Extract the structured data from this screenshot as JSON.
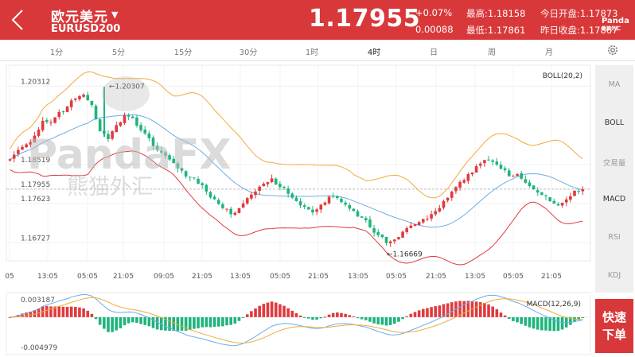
{
  "header": {
    "name": "欧元美元",
    "name_arrow": "▼",
    "code": "EURUSD200",
    "price": "1.17955",
    "change_pct": "+0.07%",
    "change_abs": "0.00088",
    "high_label": "最高:",
    "high_value": "1.18158",
    "low_label": "最低:",
    "low_value": "1.17861",
    "open_label": "今日开盘:",
    "open_value": "1.17873",
    "prev_close_label": "昨日收盘:",
    "prev_close_value": "1.17867",
    "logo_top": "Panda",
    "logo_bottom": "熊猫外汇"
  },
  "timeframes": [
    {
      "label": "1分",
      "active": false
    },
    {
      "label": "5分",
      "active": false
    },
    {
      "label": "15分",
      "active": false
    },
    {
      "label": "30分",
      "active": false
    },
    {
      "label": "1时",
      "active": false
    },
    {
      "label": "4时",
      "active": true
    },
    {
      "label": "日",
      "active": false
    },
    {
      "label": "周",
      "active": false
    },
    {
      "label": "月",
      "active": false
    }
  ],
  "side_indicators": [
    {
      "label": "MA",
      "active": false
    },
    {
      "label": "BOLL",
      "active": true
    },
    {
      "label": "交易量",
      "active": false
    },
    {
      "label": "MACD",
      "active": true
    },
    {
      "label": "RSI",
      "active": false
    },
    {
      "label": "KDJ",
      "active": false
    }
  ],
  "trade_button": {
    "line1": "快速",
    "line2": "下单"
  },
  "watermark": {
    "brand": "PandaFX",
    "cn": "熊猫外汇"
  },
  "chart_data": [
    {
      "type": "candlestick",
      "indicator": "BOLL(20,2)",
      "price_labels": [
        "1.20312",
        "1.18519",
        "1.17955",
        "1.17623",
        "1.16727"
      ],
      "price_levels": [
        1.20312,
        1.18519,
        1.17955,
        1.17623,
        1.16727
      ],
      "current_price": 1.17955,
      "max_marker": {
        "label": "1.20307",
        "value": 1.20307
      },
      "min_marker": {
        "label": "1.16669",
        "value": 1.16669
      },
      "x_ticks": [
        "05",
        "13:05",
        "05:05",
        "21:05",
        "09:05",
        "21:05",
        "13:05",
        "05:05",
        "21:05",
        "13:05",
        "05:05",
        "21:05",
        "13:05",
        "05:05",
        "21:05"
      ],
      "colors": {
        "up": "#e03a3e",
        "down": "#1fb47c",
        "upper": "#f0ab3c",
        "mid": "#6aaee6",
        "lower": "#e03a3e"
      },
      "close_path": [
        1.1864,
        1.1885,
        1.1898,
        1.1918,
        1.1952,
        1.1948,
        1.1972,
        1.1985,
        1.2003,
        1.2012,
        1.1988,
        1.1928,
        1.191,
        1.1942,
        1.1965,
        1.1958,
        1.193,
        1.1912,
        1.1885,
        1.1872,
        1.1855,
        1.1838,
        1.1822,
        1.1808,
        1.179,
        1.1772,
        1.1752,
        1.1738,
        1.1752,
        1.1775,
        1.179,
        1.1808,
        1.182,
        1.18,
        1.1785,
        1.1768,
        1.1755,
        1.1742,
        1.176,
        1.1778,
        1.1775,
        1.176,
        1.1745,
        1.173,
        1.1708,
        1.169,
        1.1672,
        1.168,
        1.1698,
        1.1712,
        1.172,
        1.1728,
        1.1745,
        1.1768,
        1.179,
        1.1812,
        1.183,
        1.1848,
        1.1862,
        1.1858,
        1.1842,
        1.1825,
        1.183,
        1.181,
        1.1795,
        1.1782,
        1.1768,
        1.1758,
        1.1772,
        1.1792,
        1.1795
      ]
    },
    {
      "type": "bar",
      "indicator": "MACD(12,26,9)",
      "ylim_labels": [
        "0.003187",
        "-0.004979"
      ],
      "ylim": [
        -0.004979,
        0.003187
      ],
      "colors": {
        "up": "#e03a3e",
        "down": "#1fb47c",
        "dif": "#6aaee6",
        "dea": "#f0ab3c"
      }
    }
  ]
}
